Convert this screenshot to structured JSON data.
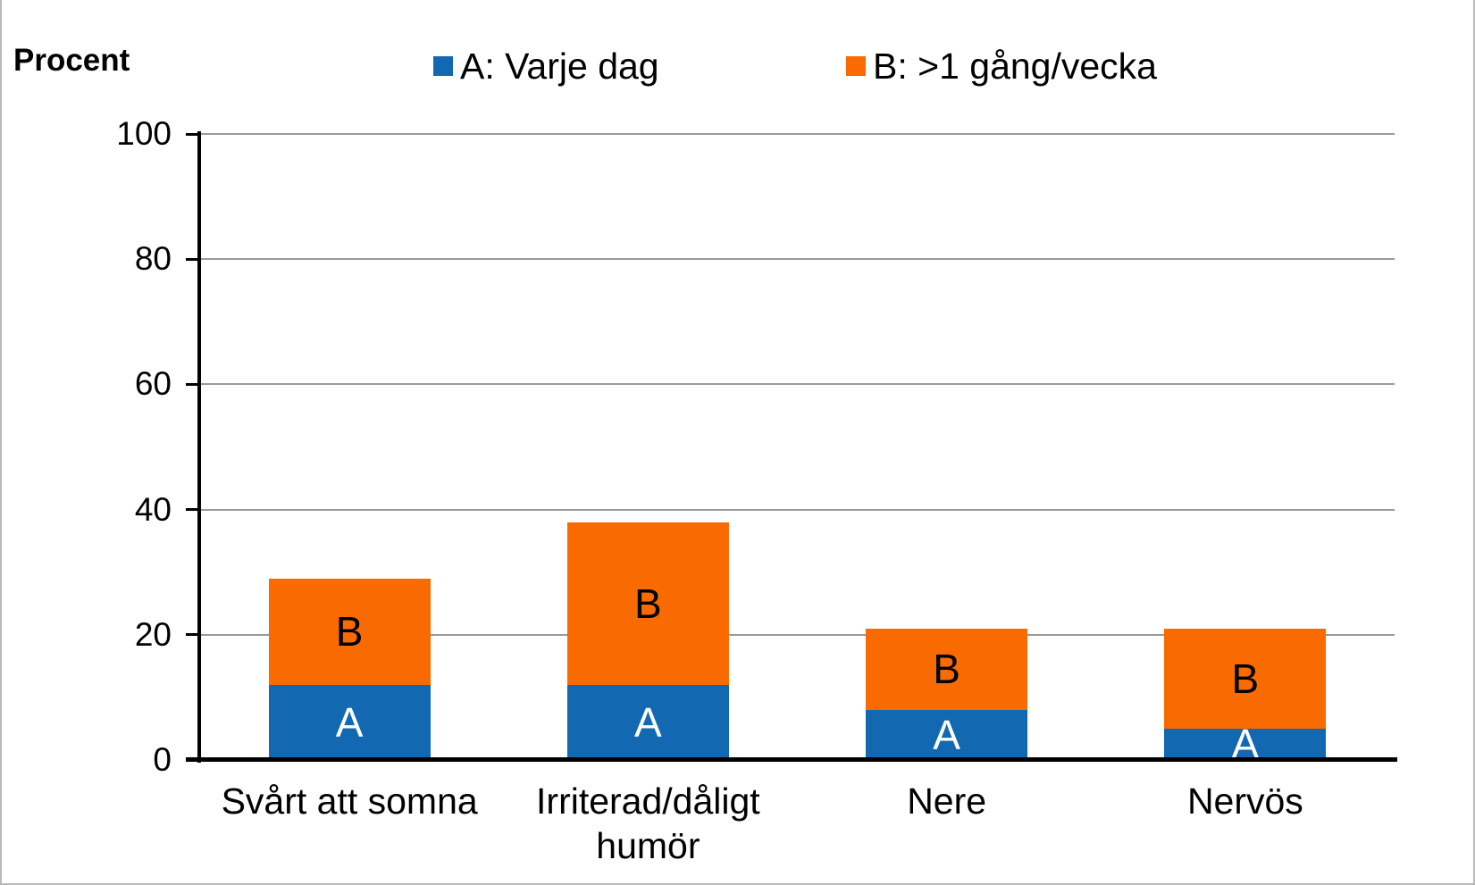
{
  "header": {
    "axis_title": "Procent"
  },
  "legend": [
    {
      "label": "A: Varje dag",
      "color": "#1268B1"
    },
    {
      "label": "B: >1 gång/vecka",
      "color": "#F96A00"
    }
  ],
  "chart_data": {
    "type": "bar",
    "stacked": true,
    "title": "",
    "ylabel": "Procent",
    "xlabel": "",
    "ylim": [
      0,
      100
    ],
    "yticks": [
      0,
      20,
      40,
      60,
      80,
      100
    ],
    "grid": true,
    "legend_position": "top",
    "categories": [
      "Svårt att somna",
      "Irriterad/dåligt humör",
      "Nere",
      "Nervös"
    ],
    "series": [
      {
        "name": "A: Varje dag",
        "letter": "A",
        "color": "#1268B1",
        "label_color": "#ffffff",
        "values": [
          12,
          12,
          8,
          5
        ]
      },
      {
        "name": "B: >1 gång/vecka",
        "letter": "B",
        "color": "#F96A00",
        "label_color": "#000000",
        "values": [
          17,
          26,
          13,
          16
        ]
      }
    ],
    "stack_totals": [
      29,
      38,
      21,
      21
    ]
  },
  "colors": {
    "gridline": "#9a9a9a",
    "axis": "#000000",
    "border": "#b9b9b9"
  }
}
